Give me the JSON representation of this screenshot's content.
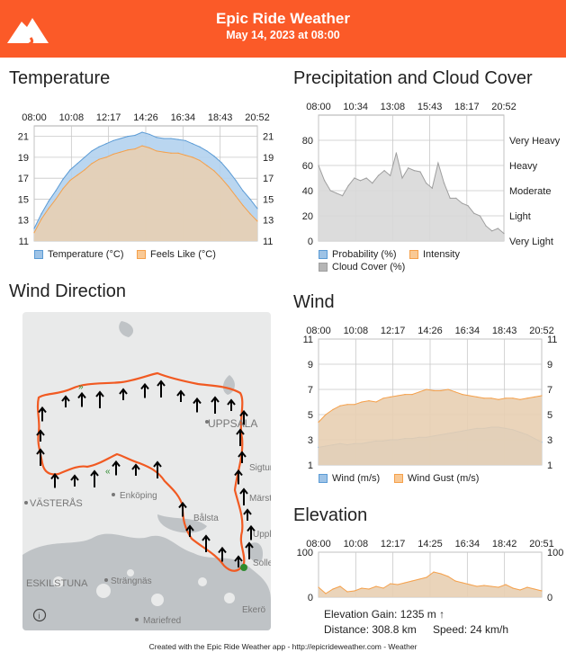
{
  "header": {
    "title": "Epic Ride Weather",
    "subtitle": "May 14, 2023 at 08:00"
  },
  "sections": {
    "temperature": "Temperature",
    "precipitation": "Precipitation and Cloud Cover",
    "wind_direction": "Wind Direction",
    "wind": "Wind",
    "elevation": "Elevation"
  },
  "colors": {
    "header": "#fb5a28",
    "blue": "#5b9bd5",
    "orange": "#f5a04a",
    "gray": "#9e9e9e",
    "route": "#f15a22"
  },
  "map": {
    "labels": [
      "UPPSALA",
      "VÄSTERÅS",
      "Enköping",
      "Bålsta",
      "ESKILSTUNA",
      "Strängnäs",
      "Mariefred",
      "Ekerö",
      "Märsta",
      "Sigtuna",
      "Upplands Väsby",
      "Sollentuna"
    ],
    "info_icon": "info-icon"
  },
  "elevation_stats": {
    "gain": "Elevation Gain: 1235 m ↑",
    "distance": "Distance: 308.8 km",
    "speed": "Speed: 24 km/h"
  },
  "footer": "Created with the Epic Ride Weather app - http://epicrideweather.com -  Weather",
  "chart_data": [
    {
      "type": "area",
      "id": "temperature",
      "title": "Temperature",
      "x_ticks": [
        "08:00",
        "10:08",
        "12:17",
        "14:26",
        "16:34",
        "18:43",
        "20:52"
      ],
      "ylim": [
        11,
        22
      ],
      "y_ticks": [
        11,
        13,
        15,
        17,
        19,
        21
      ],
      "series": [
        {
          "name": "Temperature (°C)",
          "color": "#5b9bd5",
          "values": [
            12.2,
            13.6,
            14.8,
            15.8,
            16.9,
            17.8,
            18.4,
            19.0,
            19.6,
            20.0,
            20.3,
            20.6,
            20.8,
            21.0,
            21.1,
            21.4,
            21.2,
            20.9,
            20.8,
            20.8,
            20.7,
            20.6,
            20.3,
            20.0,
            19.6,
            19.1,
            18.5,
            17.7,
            16.8,
            15.8,
            15.0,
            14.1
          ]
        },
        {
          "name": "Feels Like (°C)",
          "color": "#f5a04a",
          "values": [
            11.8,
            13.1,
            14.1,
            15.0,
            16.0,
            16.8,
            17.3,
            17.8,
            18.4,
            18.8,
            19.0,
            19.3,
            19.5,
            19.7,
            19.8,
            20.1,
            19.9,
            19.6,
            19.5,
            19.4,
            19.4,
            19.2,
            19.0,
            18.7,
            18.2,
            17.7,
            17.0,
            16.2,
            15.3,
            14.4,
            13.6,
            12.9
          ]
        }
      ]
    },
    {
      "type": "area",
      "id": "precipitation",
      "title": "Precipitation and Cloud Cover",
      "x_ticks": [
        "08:00",
        "10:34",
        "13:08",
        "15:43",
        "18:17",
        "20:52"
      ],
      "ylim": [
        0,
        100
      ],
      "y_ticks": [
        0,
        20,
        40,
        60,
        80
      ],
      "right_labels": [
        "Very Light",
        "Light",
        "Moderate",
        "Heavy",
        "Very Heavy"
      ],
      "series": [
        {
          "name": "Probability (%)",
          "color": "#5b9bd5",
          "values": []
        },
        {
          "name": "Intensity",
          "color": "#f5a04a",
          "values": []
        },
        {
          "name": "Cloud Cover (%)",
          "color": "#9e9e9e",
          "values": [
            60,
            48,
            40,
            38,
            36,
            44,
            50,
            48,
            50,
            46,
            52,
            56,
            52,
            70,
            50,
            58,
            56,
            55,
            46,
            42,
            62,
            46,
            34,
            34,
            30,
            28,
            22,
            20,
            12,
            8,
            10,
            6
          ]
        }
      ]
    },
    {
      "type": "area",
      "id": "wind",
      "title": "Wind",
      "x_ticks": [
        "08:00",
        "10:08",
        "12:17",
        "14:26",
        "16:34",
        "18:43",
        "20:52"
      ],
      "ylim": [
        1,
        11
      ],
      "y_ticks": [
        1,
        3,
        5,
        7,
        9,
        11
      ],
      "series": [
        {
          "name": "Wind (m/s)",
          "color": "#5b9bd5",
          "values": [
            2.4,
            2.5,
            2.6,
            2.7,
            2.6,
            2.7,
            2.7,
            2.8,
            2.9,
            2.9,
            3.0,
            3.0,
            3.1,
            3.1,
            3.2,
            3.2,
            3.3,
            3.4,
            3.5,
            3.6,
            3.7,
            3.8,
            3.9,
            3.9,
            4.0,
            4.0,
            3.9,
            3.8,
            3.6,
            3.4,
            3.1,
            2.8
          ]
        },
        {
          "name": "Wind Gust (m/s)",
          "color": "#f5a04a",
          "values": [
            4.4,
            5.0,
            5.4,
            5.7,
            5.8,
            5.8,
            6.0,
            6.1,
            6.0,
            6.3,
            6.4,
            6.5,
            6.6,
            6.6,
            6.8,
            7.0,
            6.9,
            6.9,
            7.0,
            6.8,
            6.6,
            6.5,
            6.4,
            6.3,
            6.3,
            6.2,
            6.3,
            6.3,
            6.2,
            6.3,
            6.4,
            6.5
          ]
        }
      ]
    },
    {
      "type": "area",
      "id": "elevation",
      "title": "Elevation",
      "x_ticks": [
        "08:00",
        "10:08",
        "12:17",
        "14:25",
        "16:34",
        "18:42",
        "20:51"
      ],
      "ylim": [
        0,
        100
      ],
      "y_ticks": [
        0,
        100
      ],
      "series": [
        {
          "name": "Elevation",
          "color": "#f5a04a",
          "values": [
            22,
            8,
            18,
            24,
            12,
            14,
            20,
            18,
            24,
            20,
            30,
            28,
            32,
            36,
            40,
            44,
            56,
            52,
            46,
            36,
            32,
            28,
            24,
            26,
            24,
            22,
            28,
            20,
            16,
            22,
            18,
            14
          ]
        }
      ]
    }
  ]
}
